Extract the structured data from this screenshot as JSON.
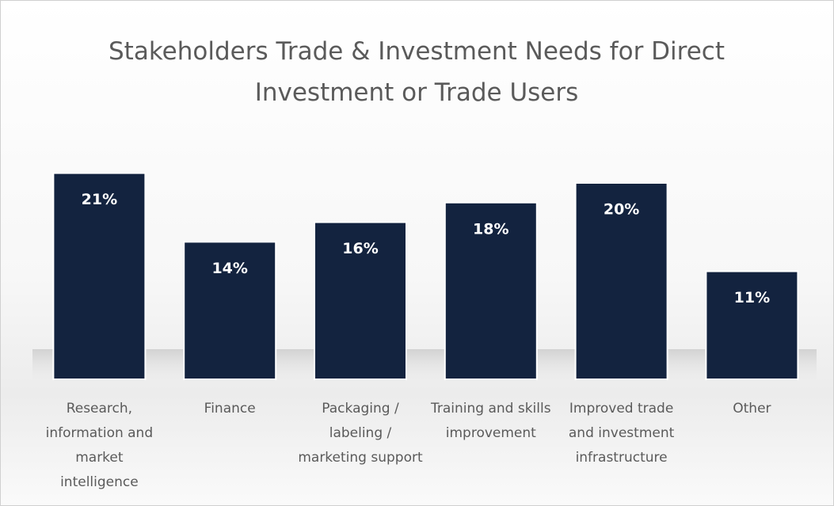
{
  "chart_data": {
    "type": "bar",
    "title": "Stakeholders Trade & Investment Needs for Direct Investment or Trade Users",
    "categories": [
      "Research, information and market intelligence",
      "Finance",
      "Packaging / labeling / marketing support",
      "Training and skills improvement",
      "Improved trade and investment infrastructure",
      "Other"
    ],
    "values": [
      21,
      14,
      16,
      18,
      20,
      11
    ],
    "value_labels": [
      "21%",
      "14%",
      "16%",
      "18%",
      "20%",
      "11%"
    ],
    "color": "#13233f"
  }
}
